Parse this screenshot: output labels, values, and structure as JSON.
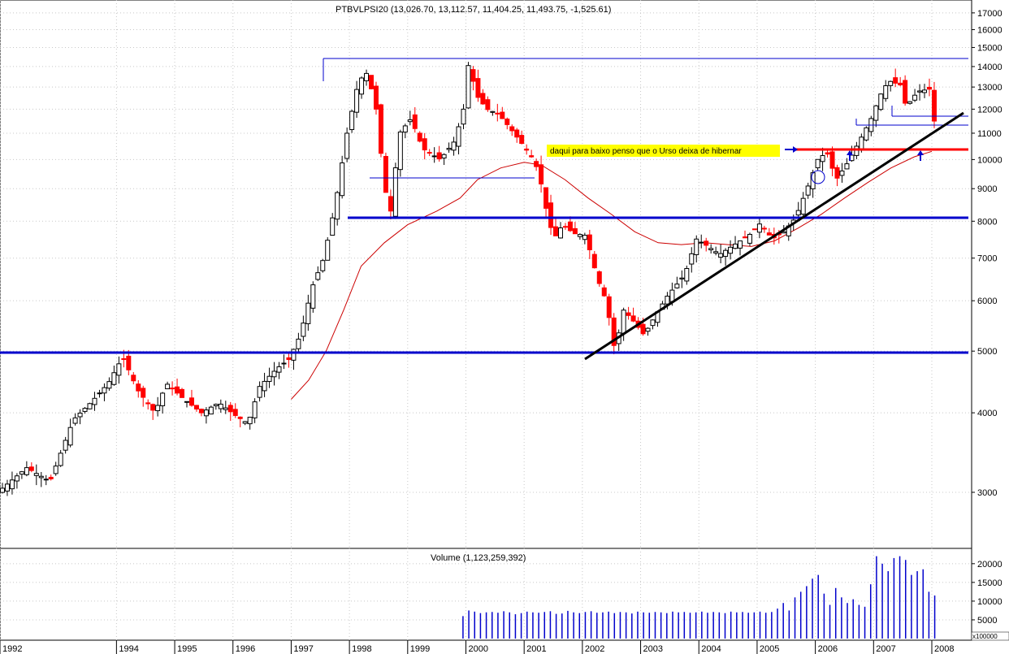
{
  "chart_data": [
    {
      "type": "candlestick",
      "title": "PTBVLPSI20 (13,026.70, 13,112.57, 11,404.25, 11,493.75, -1,525.61)",
      "y_scale": "log",
      "ylim": [
        2500,
        17500
      ],
      "y_ticks": [
        3000,
        4000,
        5000,
        6000,
        7000,
        8000,
        9000,
        10000,
        11000,
        12000,
        13000,
        14000,
        15000,
        16000,
        17000
      ],
      "y_tick_labels": [
        "3000",
        "4000",
        "5000",
        "6000",
        "7000",
        "8000",
        "9000",
        "10000",
        "11000",
        "12000",
        "13000",
        "14000",
        "15000",
        "16000",
        "17000"
      ],
      "x_range": [
        1992.0,
        2008.6
      ],
      "x_ticks": [
        1992,
        1994,
        1995,
        1996,
        1997,
        1998,
        1999,
        2000,
        2001,
        2002,
        2003,
        2004,
        2005,
        2006,
        2007,
        2008
      ],
      "x_tick_labels": [
        "1992",
        "1994",
        "1995",
        "1996",
        "1997",
        "1998",
        "1999",
        "2000",
        "2001",
        "2002",
        "2003",
        "2004",
        "2005",
        "2006",
        "2007",
        "2008"
      ],
      "grid": true,
      "price_path": [
        [
          1992.0,
          3000
        ],
        [
          1992.5,
          3280
        ],
        [
          1992.9,
          3120
        ],
        [
          1993.3,
          3900
        ],
        [
          1993.6,
          4150
        ],
        [
          1993.9,
          4450
        ],
        [
          1994.15,
          4900
        ],
        [
          1994.4,
          4350
        ],
        [
          1994.7,
          4000
        ],
        [
          1994.9,
          4450
        ],
        [
          1995.2,
          4200
        ],
        [
          1995.5,
          4000
        ],
        [
          1995.8,
          4150
        ],
        [
          1996.1,
          3950
        ],
        [
          1996.3,
          3850
        ],
        [
          1996.5,
          4400
        ],
        [
          1996.8,
          4700
        ],
        [
          1997.0,
          4850
        ],
        [
          1997.2,
          5300
        ],
        [
          1997.4,
          6300
        ],
        [
          1997.6,
          7000
        ],
        [
          1997.8,
          8500
        ],
        [
          1998.0,
          11000
        ],
        [
          1998.2,
          13300
        ],
        [
          1998.35,
          13700
        ],
        [
          1998.5,
          12000
        ],
        [
          1998.65,
          9000
        ],
        [
          1998.75,
          8300
        ],
        [
          1998.9,
          11000
        ],
        [
          1999.1,
          11600
        ],
        [
          1999.3,
          10400
        ],
        [
          1999.6,
          10000
        ],
        [
          1999.85,
          10700
        ],
        [
          2000.0,
          12000
        ],
        [
          2000.1,
          14500
        ],
        [
          2000.2,
          12700
        ],
        [
          2000.4,
          12000
        ],
        [
          2000.6,
          11800
        ],
        [
          2000.8,
          11200
        ],
        [
          2001.0,
          10600
        ],
        [
          2001.2,
          10000
        ],
        [
          2001.3,
          9500
        ],
        [
          2001.4,
          8500
        ],
        [
          2001.55,
          7500
        ],
        [
          2001.7,
          7900
        ],
        [
          2001.9,
          7650
        ],
        [
          2002.1,
          7600
        ],
        [
          2002.3,
          6500
        ],
        [
          2002.45,
          6000
        ],
        [
          2002.6,
          5000
        ],
        [
          2002.75,
          5800
        ],
        [
          2002.9,
          5600
        ],
        [
          2003.1,
          5300
        ],
        [
          2003.3,
          5700
        ],
        [
          2003.5,
          6100
        ],
        [
          2003.8,
          6600
        ],
        [
          2004.0,
          7500
        ],
        [
          2004.2,
          7300
        ],
        [
          2004.4,
          7100
        ],
        [
          2004.7,
          7400
        ],
        [
          2004.9,
          7600
        ],
        [
          2005.1,
          7950
        ],
        [
          2005.3,
          7500
        ],
        [
          2005.5,
          7700
        ],
        [
          2005.7,
          8100
        ],
        [
          2005.9,
          9000
        ],
        [
          2006.1,
          10100
        ],
        [
          2006.25,
          10200
        ],
        [
          2006.4,
          9300
        ],
        [
          2006.6,
          9900
        ],
        [
          2006.8,
          10700
        ],
        [
          2007.0,
          11600
        ],
        [
          2007.15,
          12600
        ],
        [
          2007.3,
          13300
        ],
        [
          2007.5,
          13100
        ],
        [
          2007.6,
          12100
        ],
        [
          2007.8,
          12800
        ],
        [
          2008.0,
          12900
        ],
        [
          2008.05,
          11493
        ]
      ],
      "moving_average": [
        [
          1997.0,
          4200
        ],
        [
          1997.3,
          4500
        ],
        [
          1997.6,
          5000
        ],
        [
          1997.9,
          5800
        ],
        [
          1998.2,
          6800
        ],
        [
          1998.6,
          7400
        ],
        [
          1999.0,
          7900
        ],
        [
          1999.5,
          8300
        ],
        [
          1999.9,
          8700
        ],
        [
          2000.2,
          9300
        ],
        [
          2000.6,
          9700
        ],
        [
          2001.0,
          9900
        ],
        [
          2001.3,
          9800
        ],
        [
          2001.7,
          9300
        ],
        [
          2002.1,
          8700
        ],
        [
          2002.5,
          8200
        ],
        [
          2002.9,
          7700
        ],
        [
          2003.3,
          7400
        ],
        [
          2003.7,
          7350
        ],
        [
          2004.1,
          7400
        ],
        [
          2004.5,
          7350
        ],
        [
          2004.9,
          7300
        ],
        [
          2005.3,
          7450
        ],
        [
          2005.7,
          7800
        ],
        [
          2006.1,
          8200
        ],
        [
          2006.5,
          8700
        ],
        [
          2006.9,
          9200
        ],
        [
          2007.3,
          9700
        ],
        [
          2007.7,
          10100
        ],
        [
          2008.0,
          10300
        ]
      ],
      "annotations": {
        "note": "daqui para baixo penso que o Urso deixa de hibernar",
        "colors": {
          "up": "#000000",
          "down": "#ff0000",
          "trend": "#000000",
          "support": "#0000cc",
          "red_level": "#ff0000",
          "ma": "#cc0000",
          "note_bg": "#ffff00",
          "arrows": "#0000cc"
        }
      }
    },
    {
      "type": "bar",
      "title": "Volume (1,123,259,392)",
      "y_ticks": [
        5000,
        10000,
        15000,
        20000
      ],
      "y_tick_labels": [
        "5000",
        "10000",
        "15000",
        "20000"
      ],
      "ylim": [
        0,
        23000
      ],
      "y_unit_label": "x100000",
      "x_range": [
        1992.0,
        2008.6
      ],
      "bar_color": "#0000cc",
      "volumes": [
        [
          1999.95,
          6000
        ],
        [
          2000.05,
          7500
        ],
        [
          2000.15,
          7200
        ],
        [
          2000.25,
          6800
        ],
        [
          2000.35,
          7000
        ],
        [
          2000.45,
          7100
        ],
        [
          2000.55,
          6900
        ],
        [
          2000.65,
          7300
        ],
        [
          2000.75,
          7000
        ],
        [
          2000.85,
          6500
        ],
        [
          2000.95,
          6800
        ],
        [
          2001.05,
          7200
        ],
        [
          2001.15,
          7000
        ],
        [
          2001.25,
          6900
        ],
        [
          2001.35,
          7100
        ],
        [
          2001.45,
          7300
        ],
        [
          2001.55,
          6600
        ],
        [
          2001.65,
          6700
        ],
        [
          2001.75,
          7400
        ],
        [
          2001.85,
          7000
        ],
        [
          2001.95,
          6800
        ],
        [
          2002.05,
          7100
        ],
        [
          2002.15,
          7300
        ],
        [
          2002.25,
          6900
        ],
        [
          2002.35,
          7000
        ],
        [
          2002.45,
          7200
        ],
        [
          2002.55,
          6800
        ],
        [
          2002.65,
          7100
        ],
        [
          2002.75,
          7000
        ],
        [
          2002.85,
          6700
        ],
        [
          2002.95,
          7200
        ],
        [
          2003.05,
          7000
        ],
        [
          2003.15,
          6900
        ],
        [
          2003.25,
          7100
        ],
        [
          2003.35,
          7000
        ],
        [
          2003.45,
          6800
        ],
        [
          2003.55,
          7200
        ],
        [
          2003.65,
          7000
        ],
        [
          2003.75,
          7100
        ],
        [
          2003.85,
          6900
        ],
        [
          2003.95,
          7000
        ],
        [
          2004.05,
          7200
        ],
        [
          2004.15,
          6900
        ],
        [
          2004.25,
          7100
        ],
        [
          2004.35,
          7000
        ],
        [
          2004.45,
          6800
        ],
        [
          2004.55,
          7200
        ],
        [
          2004.65,
          7000
        ],
        [
          2004.75,
          7100
        ],
        [
          2004.85,
          6900
        ],
        [
          2004.95,
          7000
        ],
        [
          2005.05,
          7200
        ],
        [
          2005.15,
          6900
        ],
        [
          2005.25,
          7100
        ],
        [
          2005.35,
          8000
        ],
        [
          2005.45,
          9500
        ],
        [
          2005.55,
          7500
        ],
        [
          2005.65,
          11000
        ],
        [
          2005.75,
          12500
        ],
        [
          2005.85,
          14000
        ],
        [
          2005.95,
          16000
        ],
        [
          2006.05,
          17000
        ],
        [
          2006.15,
          12000
        ],
        [
          2006.25,
          9000
        ],
        [
          2006.35,
          13500
        ],
        [
          2006.45,
          11000
        ],
        [
          2006.55,
          9500
        ],
        [
          2006.65,
          10500
        ],
        [
          2006.75,
          9000
        ],
        [
          2006.85,
          8500
        ],
        [
          2006.95,
          14500
        ],
        [
          2007.05,
          22000
        ],
        [
          2007.15,
          20000
        ],
        [
          2007.25,
          18000
        ],
        [
          2007.35,
          21500
        ],
        [
          2007.45,
          22000
        ],
        [
          2007.55,
          21000
        ],
        [
          2007.65,
          17000
        ],
        [
          2007.75,
          18000
        ],
        [
          2007.85,
          18500
        ],
        [
          2007.95,
          12500
        ],
        [
          2008.05,
          11500
        ]
      ]
    }
  ]
}
